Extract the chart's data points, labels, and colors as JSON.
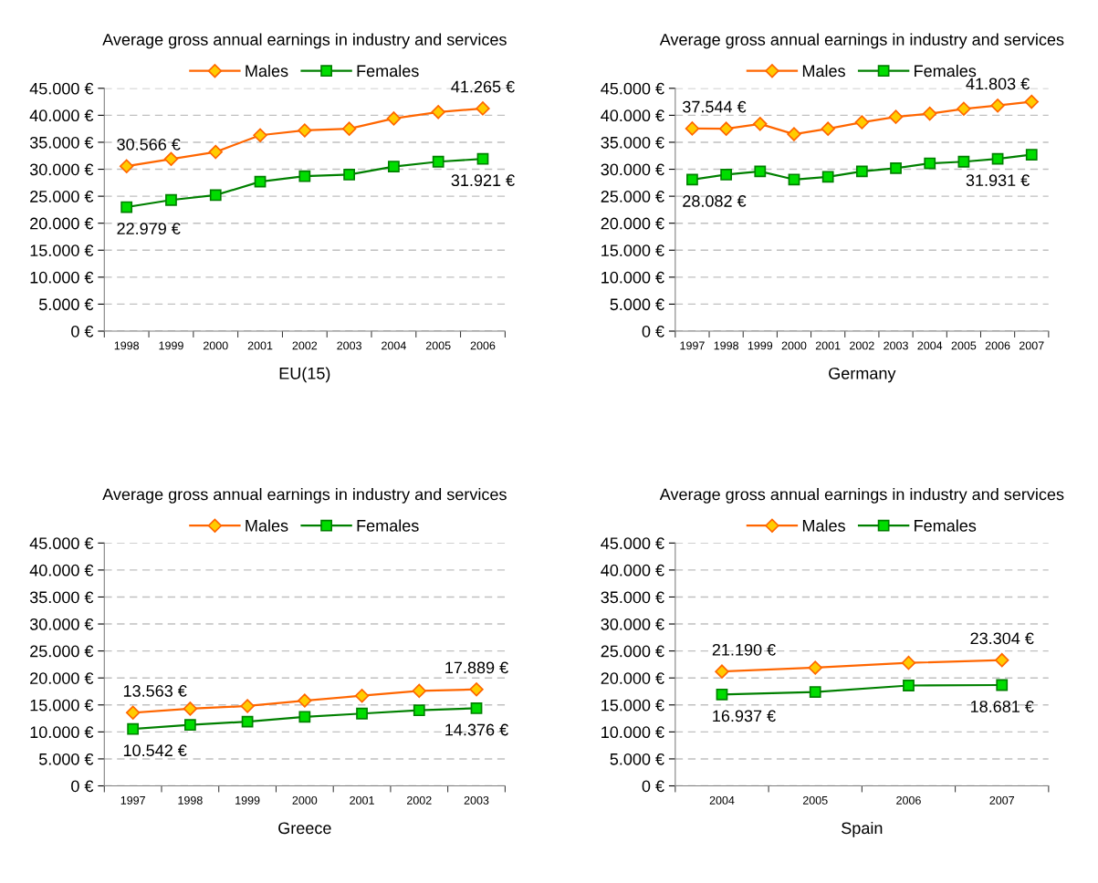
{
  "chart_data": [
    {
      "type": "line",
      "title": "Average gross annual earnings in industry and services",
      "xlabel": "EU(15)",
      "categories": [
        "1998",
        "1999",
        "2000",
        "2001",
        "2002",
        "2003",
        "2004",
        "2005",
        "2006"
      ],
      "legend": "top",
      "grid": "y",
      "line_style": "solid",
      "ylim": [
        0,
        45000
      ],
      "yticks": [
        {
          "value": 0,
          "label": "0 €"
        },
        {
          "value": 5000,
          "label": "5.000 €"
        },
        {
          "value": 10000,
          "label": "10.000 €"
        },
        {
          "value": 15000,
          "label": "15.000 €"
        },
        {
          "value": 20000,
          "label": "20.000 €"
        },
        {
          "value": 25000,
          "label": "25.000 €"
        },
        {
          "value": 30000,
          "label": "30.000 €"
        },
        {
          "value": 35000,
          "label": "35.000 €"
        },
        {
          "value": 40000,
          "label": "40.000 €"
        },
        {
          "value": 45000,
          "label": "45.000 €"
        }
      ],
      "series": [
        {
          "name": "Males",
          "color": "#ff6600",
          "marker": "diamond",
          "values": [
            30566,
            31900,
            33200,
            36300,
            37200,
            37500,
            39400,
            40600,
            41265
          ],
          "value_labels": [
            "30.566 €",
            null,
            null,
            null,
            null,
            null,
            null,
            null,
            "41.265 €"
          ]
        },
        {
          "name": "Females",
          "color": "#008000",
          "marker": "square",
          "values": [
            22979,
            24300,
            25200,
            27700,
            28700,
            29000,
            30500,
            31400,
            31921
          ],
          "value_labels": [
            "22.979 €",
            null,
            null,
            null,
            null,
            null,
            null,
            null,
            "31.921 €"
          ]
        }
      ]
    },
    {
      "type": "line",
      "title": "Average gross annual earnings in industry and services",
      "xlabel": "Germany",
      "categories": [
        "1997",
        "1998",
        "1999",
        "2000",
        "2001",
        "2002",
        "2003",
        "2004",
        "2005",
        "2006",
        "2007"
      ],
      "legend": "top",
      "grid": "y",
      "line_style": "solid",
      "ylim": [
        0,
        45000
      ],
      "yticks": [
        {
          "value": 0,
          "label": "0 €"
        },
        {
          "value": 5000,
          "label": "5.000 €"
        },
        {
          "value": 10000,
          "label": "10.000 €"
        },
        {
          "value": 15000,
          "label": "15.000 €"
        },
        {
          "value": 20000,
          "label": "20.000 €"
        },
        {
          "value": 25000,
          "label": "25.000 €"
        },
        {
          "value": 30000,
          "label": "30.000 €"
        },
        {
          "value": 35000,
          "label": "35.000 €"
        },
        {
          "value": 40000,
          "label": "40.000 €"
        },
        {
          "value": 45000,
          "label": "45.000 €"
        }
      ],
      "series": [
        {
          "name": "Males",
          "color": "#ff6600",
          "marker": "diamond",
          "values": [
            37544,
            37500,
            38400,
            36500,
            37500,
            38700,
            39700,
            40300,
            41200,
            41803,
            42500
          ],
          "value_labels": [
            "37.544 €",
            null,
            null,
            null,
            null,
            null,
            null,
            null,
            null,
            "41.803 €",
            null
          ]
        },
        {
          "name": "Females",
          "color": "#008000",
          "marker": "square",
          "values": [
            28082,
            29000,
            29600,
            28100,
            28600,
            29600,
            30200,
            31100,
            31400,
            31931,
            32700
          ],
          "value_labels": [
            "28.082 €",
            null,
            null,
            null,
            null,
            null,
            null,
            null,
            null,
            "31.931 €",
            null
          ]
        }
      ]
    },
    {
      "type": "line",
      "title": "Average gross annual earnings in industry and services",
      "xlabel": "Greece",
      "categories": [
        "1997",
        "1998",
        "1999",
        "2000",
        "2001",
        "2002",
        "2003"
      ],
      "legend": "top",
      "grid": "y",
      "line_style": "solid",
      "ylim": [
        0,
        45000
      ],
      "yticks": [
        {
          "value": 0,
          "label": "0 €"
        },
        {
          "value": 5000,
          "label": "5.000 €"
        },
        {
          "value": 10000,
          "label": "10.000 €"
        },
        {
          "value": 15000,
          "label": "15.000 €"
        },
        {
          "value": 20000,
          "label": "20.000 €"
        },
        {
          "value": 25000,
          "label": "25.000 €"
        },
        {
          "value": 30000,
          "label": "30.000 €"
        },
        {
          "value": 35000,
          "label": "35.000 €"
        },
        {
          "value": 40000,
          "label": "40.000 €"
        },
        {
          "value": 45000,
          "label": "45.000 €"
        }
      ],
      "series": [
        {
          "name": "Males",
          "color": "#ff6600",
          "marker": "diamond",
          "values": [
            13563,
            14300,
            14800,
            15800,
            16700,
            17600,
            17889
          ],
          "value_labels": [
            "13.563 €",
            null,
            null,
            null,
            null,
            null,
            "17.889 €"
          ]
        },
        {
          "name": "Females",
          "color": "#008000",
          "marker": "square",
          "values": [
            10542,
            11300,
            11900,
            12800,
            13400,
            14000,
            14376
          ],
          "value_labels": [
            "10.542 €",
            null,
            null,
            null,
            null,
            null,
            "14.376 €"
          ]
        }
      ]
    },
    {
      "type": "line",
      "title": "Average gross annual earnings in industry and services",
      "xlabel": "Spain",
      "categories": [
        "2004",
        "2005",
        "2006",
        "2007"
      ],
      "legend": "top",
      "grid": "y",
      "line_style": "solid",
      "ylim": [
        0,
        45000
      ],
      "yticks": [
        {
          "value": 0,
          "label": "0 €"
        },
        {
          "value": 5000,
          "label": "5.000 €"
        },
        {
          "value": 10000,
          "label": "10.000 €"
        },
        {
          "value": 15000,
          "label": "15.000 €"
        },
        {
          "value": 20000,
          "label": "20.000 €"
        },
        {
          "value": 25000,
          "label": "25.000 €"
        },
        {
          "value": 30000,
          "label": "30.000 €"
        },
        {
          "value": 35000,
          "label": "35.000 €"
        },
        {
          "value": 40000,
          "label": "40.000 €"
        },
        {
          "value": 45000,
          "label": "45.000 €"
        }
      ],
      "series": [
        {
          "name": "Males",
          "color": "#ff6600",
          "marker": "diamond",
          "values": [
            21190,
            21900,
            22800,
            23304
          ],
          "value_labels": [
            "21.190 €",
            null,
            null,
            "23.304 €"
          ]
        },
        {
          "name": "Females",
          "color": "#008000",
          "marker": "square",
          "values": [
            16937,
            17400,
            18600,
            18681
          ],
          "value_labels": [
            "16.937 €",
            null,
            null,
            "18.681 €"
          ]
        }
      ]
    }
  ]
}
